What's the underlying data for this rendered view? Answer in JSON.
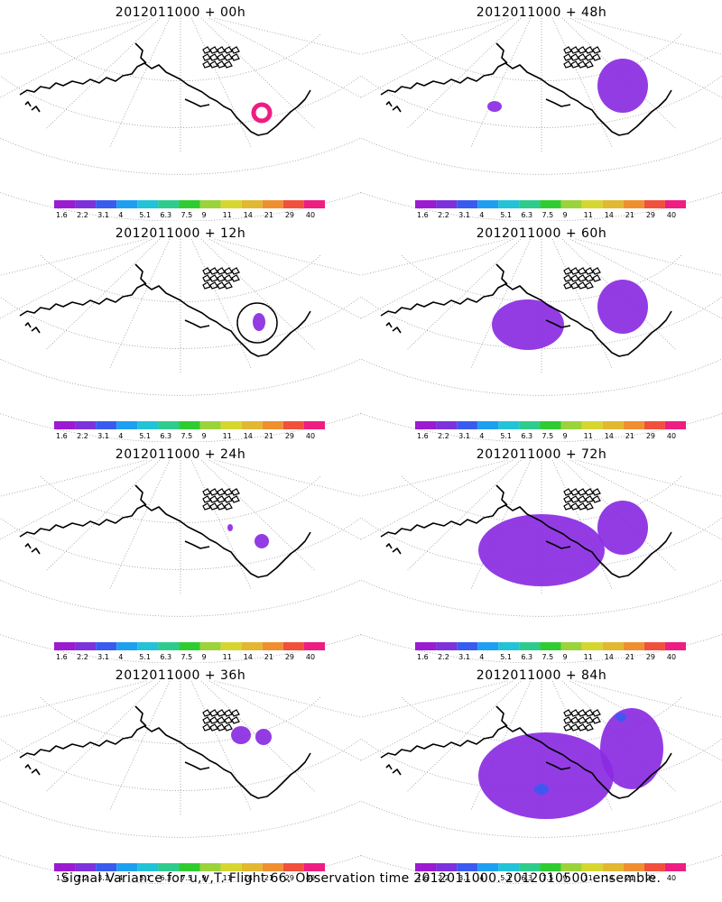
{
  "caption": "Signal Variance for u,v,T. Flight 66. Observation time 2012011000. 2012010500 ensemble.",
  "colorbar": {
    "labels": [
      "1.6",
      "2.2",
      "3.1",
      "4",
      "5.1",
      "6.3",
      "7.5",
      "9",
      "11",
      "14",
      "21",
      "29",
      "40"
    ],
    "colors": [
      "#9b1bd0",
      "#7d32dc",
      "#3a5bf0",
      "#1e9ff0",
      "#22c3d6",
      "#2ecc8c",
      "#2fcc31",
      "#9cd33a",
      "#d6d630",
      "#e2b830",
      "#ef8f30",
      "#f0503c",
      "#ee1d82"
    ]
  },
  "chart_data": [
    {
      "type": "heatmap",
      "title": "2012011000 + 00h",
      "lead_hours": 0,
      "signal_variance_level": "low",
      "features": [
        "small magenta ring near Hudson Bay"
      ]
    },
    {
      "type": "heatmap",
      "title": "2012011000 + 12h",
      "lead_hours": 12,
      "signal_variance_level": "low",
      "features": [
        "small purple blob near Hudson Bay",
        "black ring outline"
      ]
    },
    {
      "type": "heatmap",
      "title": "2012011000 + 24h",
      "lead_hours": 24,
      "signal_variance_level": "low",
      "features": [
        "small purple blobs near Hudson Bay"
      ]
    },
    {
      "type": "heatmap",
      "title": "2012011000 + 36h",
      "lead_hours": 36,
      "signal_variance_level": "low",
      "features": [
        "purple patches near Hudson Bay and Greenland"
      ]
    },
    {
      "type": "heatmap",
      "title": "2012011000 + 48h",
      "lead_hours": 48,
      "signal_variance_level": "low",
      "features": [
        "purple over eastern Canada/Greenland",
        "small patches over Pacific"
      ]
    },
    {
      "type": "heatmap",
      "title": "2012011000 + 60h",
      "lead_hours": 60,
      "signal_variance_level": "low-moderate",
      "features": [
        "purple over Alaska/Pacific",
        "purple over eastern Canada"
      ]
    },
    {
      "type": "heatmap",
      "title": "2012011000 + 72h",
      "lead_hours": 72,
      "signal_variance_level": "moderate",
      "features": [
        "large purple region Pacific to Alaska",
        "purple over eastern Canada"
      ]
    },
    {
      "type": "heatmap",
      "title": "2012011000 + 84h",
      "lead_hours": 84,
      "signal_variance_level": "moderate",
      "features": [
        "large purple region Pacific/Alaska/Canada",
        "blue spots embedded"
      ]
    }
  ]
}
